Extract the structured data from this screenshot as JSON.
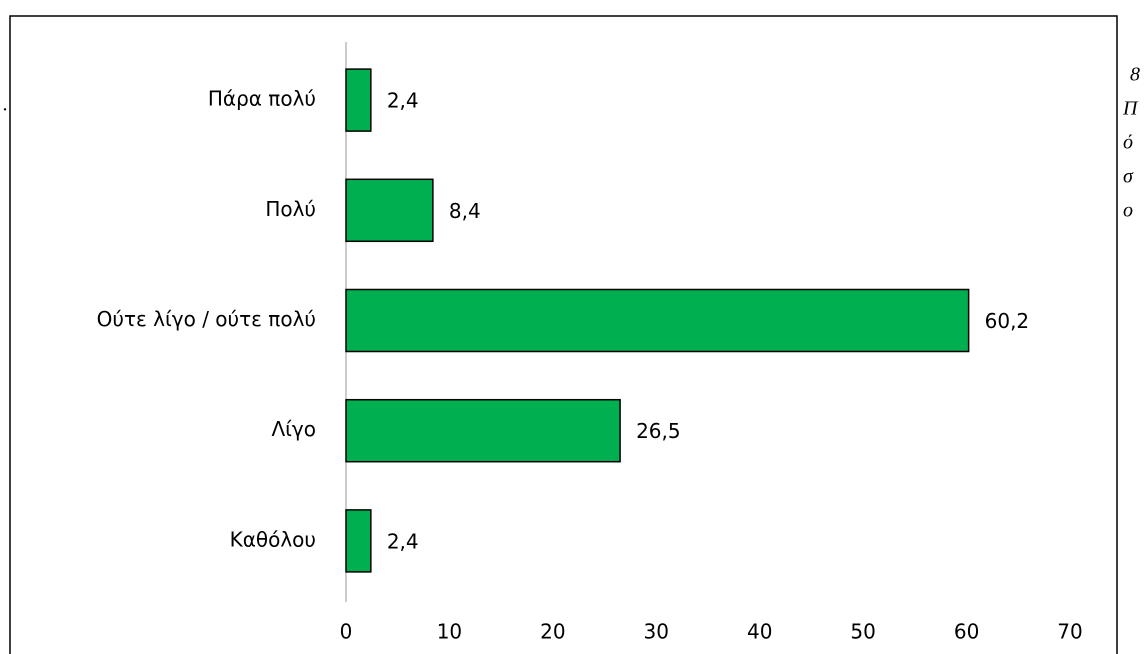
{
  "chart_data": {
    "type": "bar",
    "orientation": "horizontal",
    "categories": [
      "Πάρα πολύ",
      "Πολύ",
      "Ούτε λίγο / ούτε πολύ",
      "Λίγο",
      "Καθόλου"
    ],
    "values": [
      2.4,
      8.4,
      60.2,
      26.5,
      2.4
    ],
    "value_labels": [
      "2,4",
      "8,4",
      "60,2",
      "26,5",
      "2,4"
    ],
    "color": "#00b050",
    "xlim": [
      0,
      70
    ],
    "xticks": [
      0,
      10,
      20,
      30,
      40,
      50,
      60,
      70
    ],
    "grid": false
  },
  "side_text": [
    "8",
    "Π",
    "ό",
    "σ",
    "ο"
  ],
  "stray_mark": "."
}
